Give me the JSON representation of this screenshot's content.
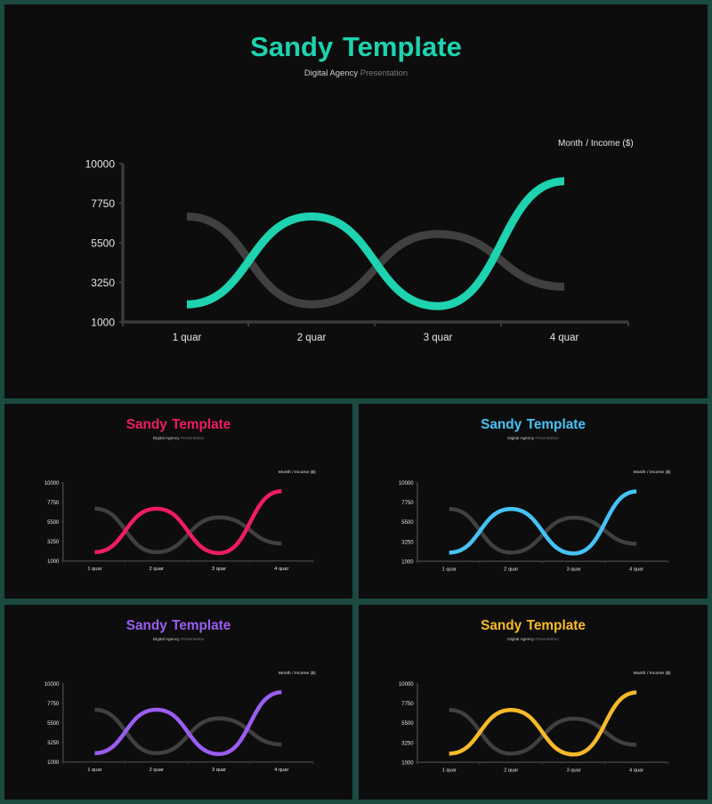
{
  "title_word_1": "Sandy",
  "title_word_2": "Template",
  "subtitle_part_1": "Digital Agency",
  "subtitle_part_2": "Presentation",
  "legend_label_1": "Month",
  "legend_label_2": "/ Income ($)",
  "colors": {
    "background": "#0d0d0d",
    "frame": "#1b4a40",
    "axis": "#3a3a3a",
    "secondary_series": "#404040",
    "teal": "#1dd3b0",
    "pink": "#ef1c62",
    "blue": "#45c3f7",
    "purple": "#9b5df2",
    "yellow": "#f7ba28"
  },
  "chart_data": [
    {
      "type": "line",
      "accent": "teal",
      "categories": [
        "1 quar",
        "2 quar",
        "3 quar",
        "4 quar"
      ],
      "y_ticks": [
        1000,
        3250,
        5500,
        7750,
        10000
      ],
      "ylim": [
        1000,
        10000
      ],
      "series": [
        {
          "color": "accent",
          "values": [
            2000,
            7000,
            1900,
            9000
          ]
        },
        {
          "color": "gray",
          "values": [
            7000,
            2000,
            6000,
            3000
          ]
        }
      ]
    },
    {
      "type": "line",
      "accent": "pink",
      "categories": [
        "1 quar",
        "2 quar",
        "3 quar",
        "4 quar"
      ],
      "y_ticks": [
        1000,
        3250,
        5500,
        7750,
        10000
      ],
      "ylim": [
        1000,
        10000
      ],
      "series": [
        {
          "color": "accent",
          "values": [
            2000,
            7000,
            1900,
            9000
          ]
        },
        {
          "color": "gray",
          "values": [
            7000,
            2000,
            6000,
            3000
          ]
        }
      ]
    },
    {
      "type": "line",
      "accent": "blue",
      "categories": [
        "1 quar",
        "2 quar",
        "3 quar",
        "4 quar"
      ],
      "y_ticks": [
        1000,
        3250,
        5500,
        7750,
        10000
      ],
      "ylim": [
        1000,
        10000
      ],
      "series": [
        {
          "color": "accent",
          "values": [
            2000,
            7000,
            1900,
            9000
          ]
        },
        {
          "color": "gray",
          "values": [
            7000,
            2000,
            6000,
            3000
          ]
        }
      ]
    },
    {
      "type": "line",
      "accent": "purple",
      "categories": [
        "1 quar",
        "2 quar",
        "3 quar",
        "4 quar"
      ],
      "y_ticks": [
        1000,
        3250,
        5500,
        7750,
        10000
      ],
      "ylim": [
        1000,
        10000
      ],
      "series": [
        {
          "color": "accent",
          "values": [
            2000,
            7000,
            1900,
            9000
          ]
        },
        {
          "color": "gray",
          "values": [
            7000,
            2000,
            6000,
            3000
          ]
        }
      ]
    },
    {
      "type": "line",
      "accent": "yellow",
      "categories": [
        "1 quar",
        "2 quar",
        "3 quar",
        "4 quar"
      ],
      "y_ticks": [
        1000,
        3250,
        5500,
        7750,
        10000
      ],
      "ylim": [
        1000,
        10000
      ],
      "series": [
        {
          "color": "accent",
          "values": [
            2000,
            7000,
            1900,
            9000
          ]
        },
        {
          "color": "gray",
          "values": [
            7000,
            2000,
            6000,
            3000
          ]
        }
      ]
    }
  ]
}
